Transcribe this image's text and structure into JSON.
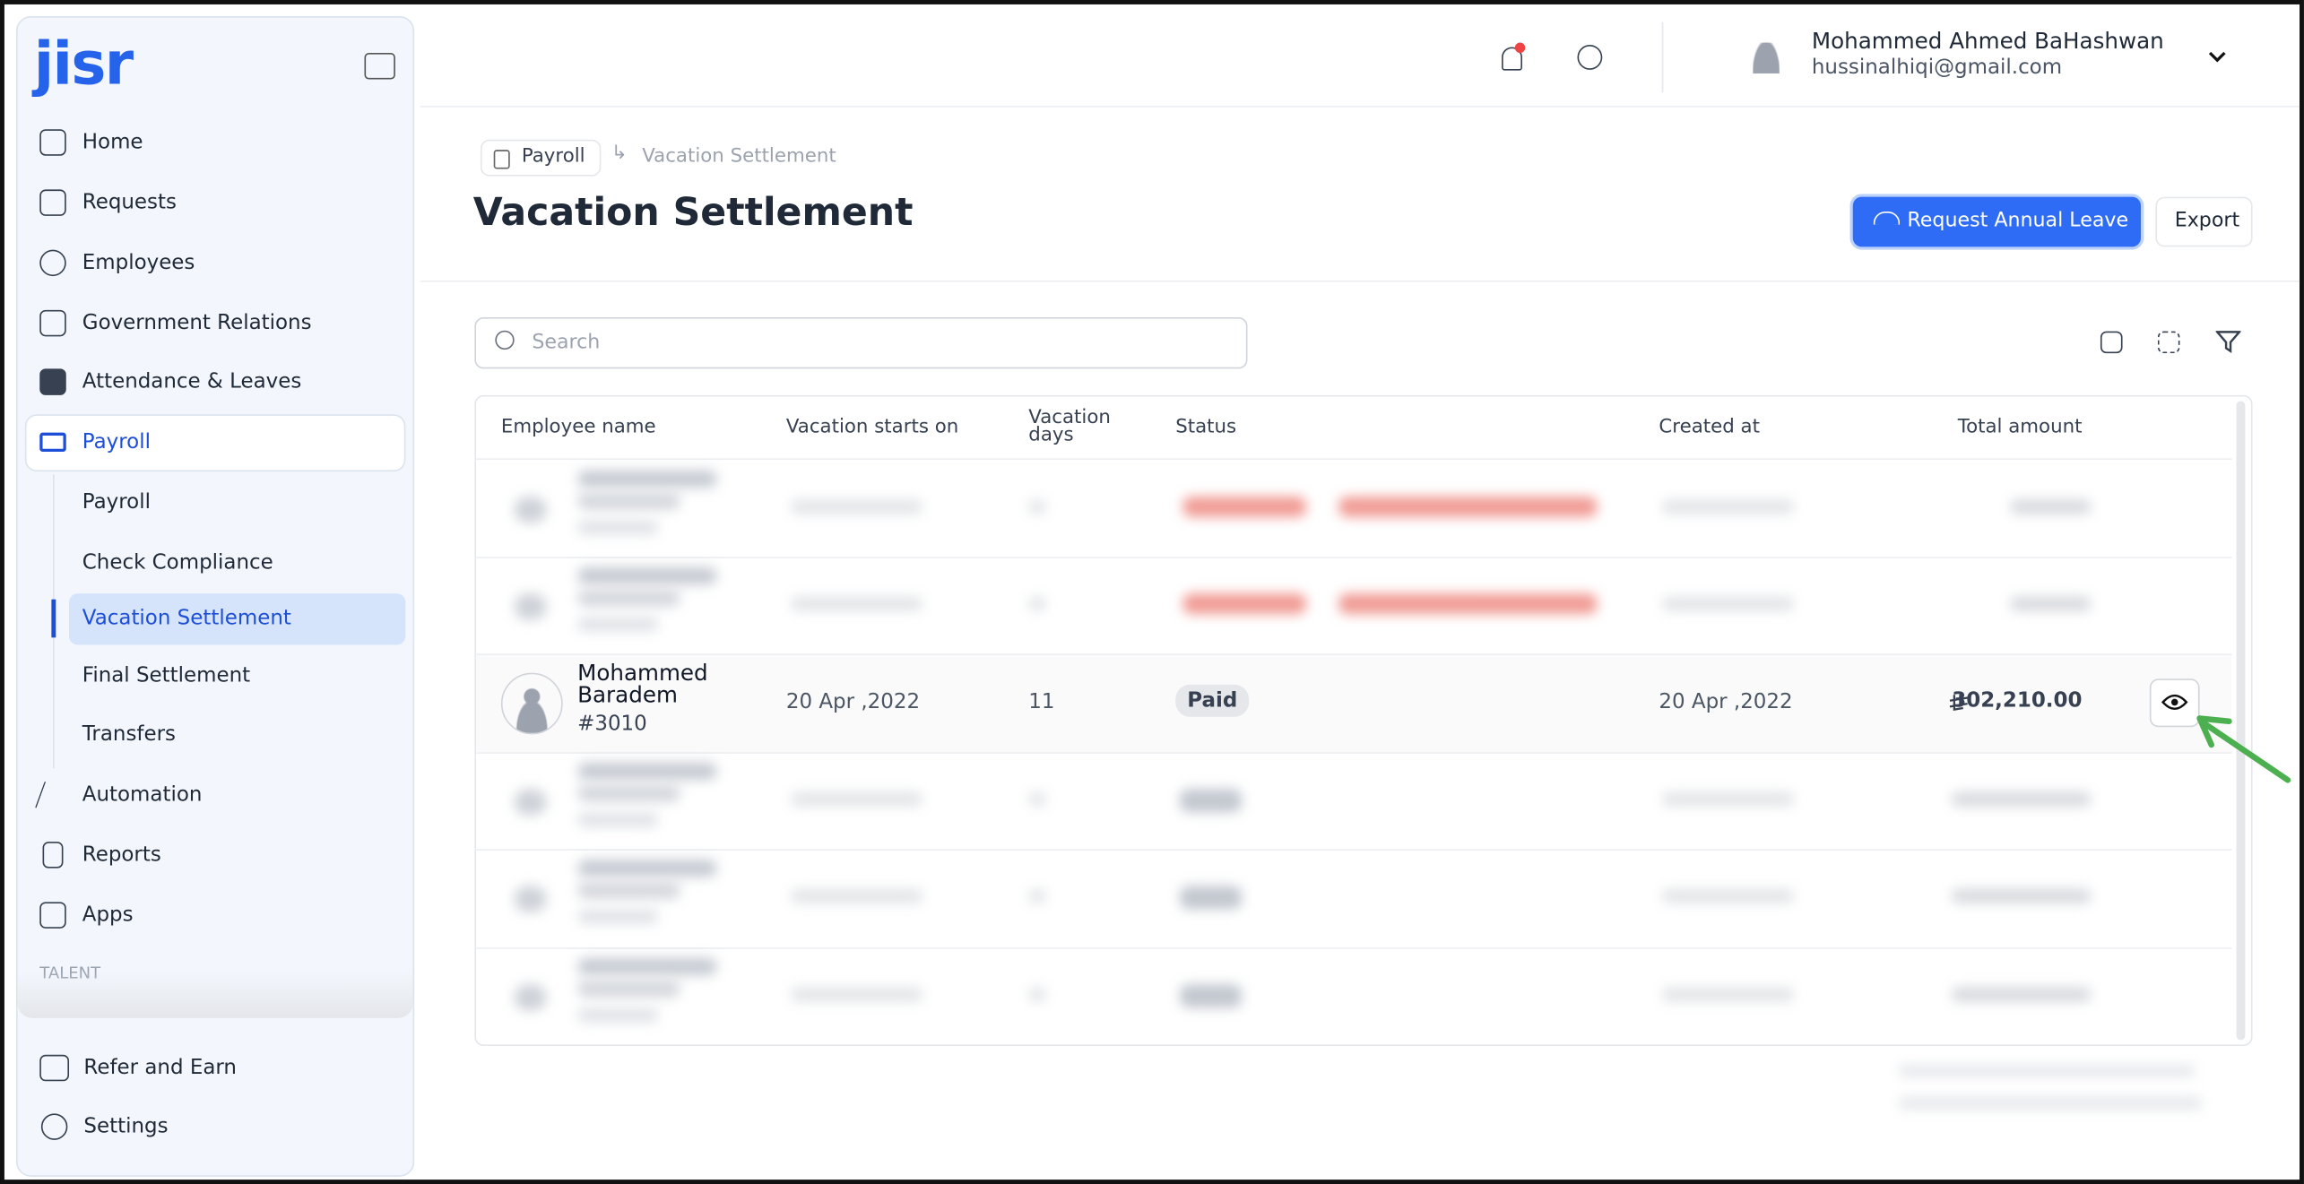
{
  "sidebar": {
    "logo": "jisr",
    "nav": [
      "Home",
      "Requests",
      "Employees",
      "Government Relations",
      "Attendance & Leaves",
      "Payroll"
    ],
    "payroll_sub": [
      "Payroll",
      "Check Compliance",
      "Vacation Settlement",
      "Final Settlement",
      "Transfers"
    ],
    "nav_after": [
      "Automation",
      "Reports",
      "Apps"
    ],
    "section": "TALENT",
    "bottom": [
      "Refer and Earn",
      "Settings"
    ]
  },
  "header": {
    "user_name": "Mohammed Ahmed BaHashwan",
    "email": "hussinalhiqi@gmail.com"
  },
  "breadcrumb": [
    "Payroll",
    "Vacation Settlement"
  ],
  "page_title": "Vacation Settlement",
  "actions": [
    "Request Annual Leave",
    "Export"
  ],
  "search_placeholder": "Search",
  "table": {
    "columns": [
      "Employee name",
      "Vacation starts on",
      "Vacation days",
      "Status",
      "Created at",
      "Total amount"
    ],
    "rows": [
      {
        "name": "Mohammed Baradem",
        "id": "#3010",
        "start": "20 Apr ,2022",
        "days": "11",
        "status": "Paid",
        "created": "20 Apr ,2022",
        "amount": "302,210.00"
      }
    ]
  }
}
